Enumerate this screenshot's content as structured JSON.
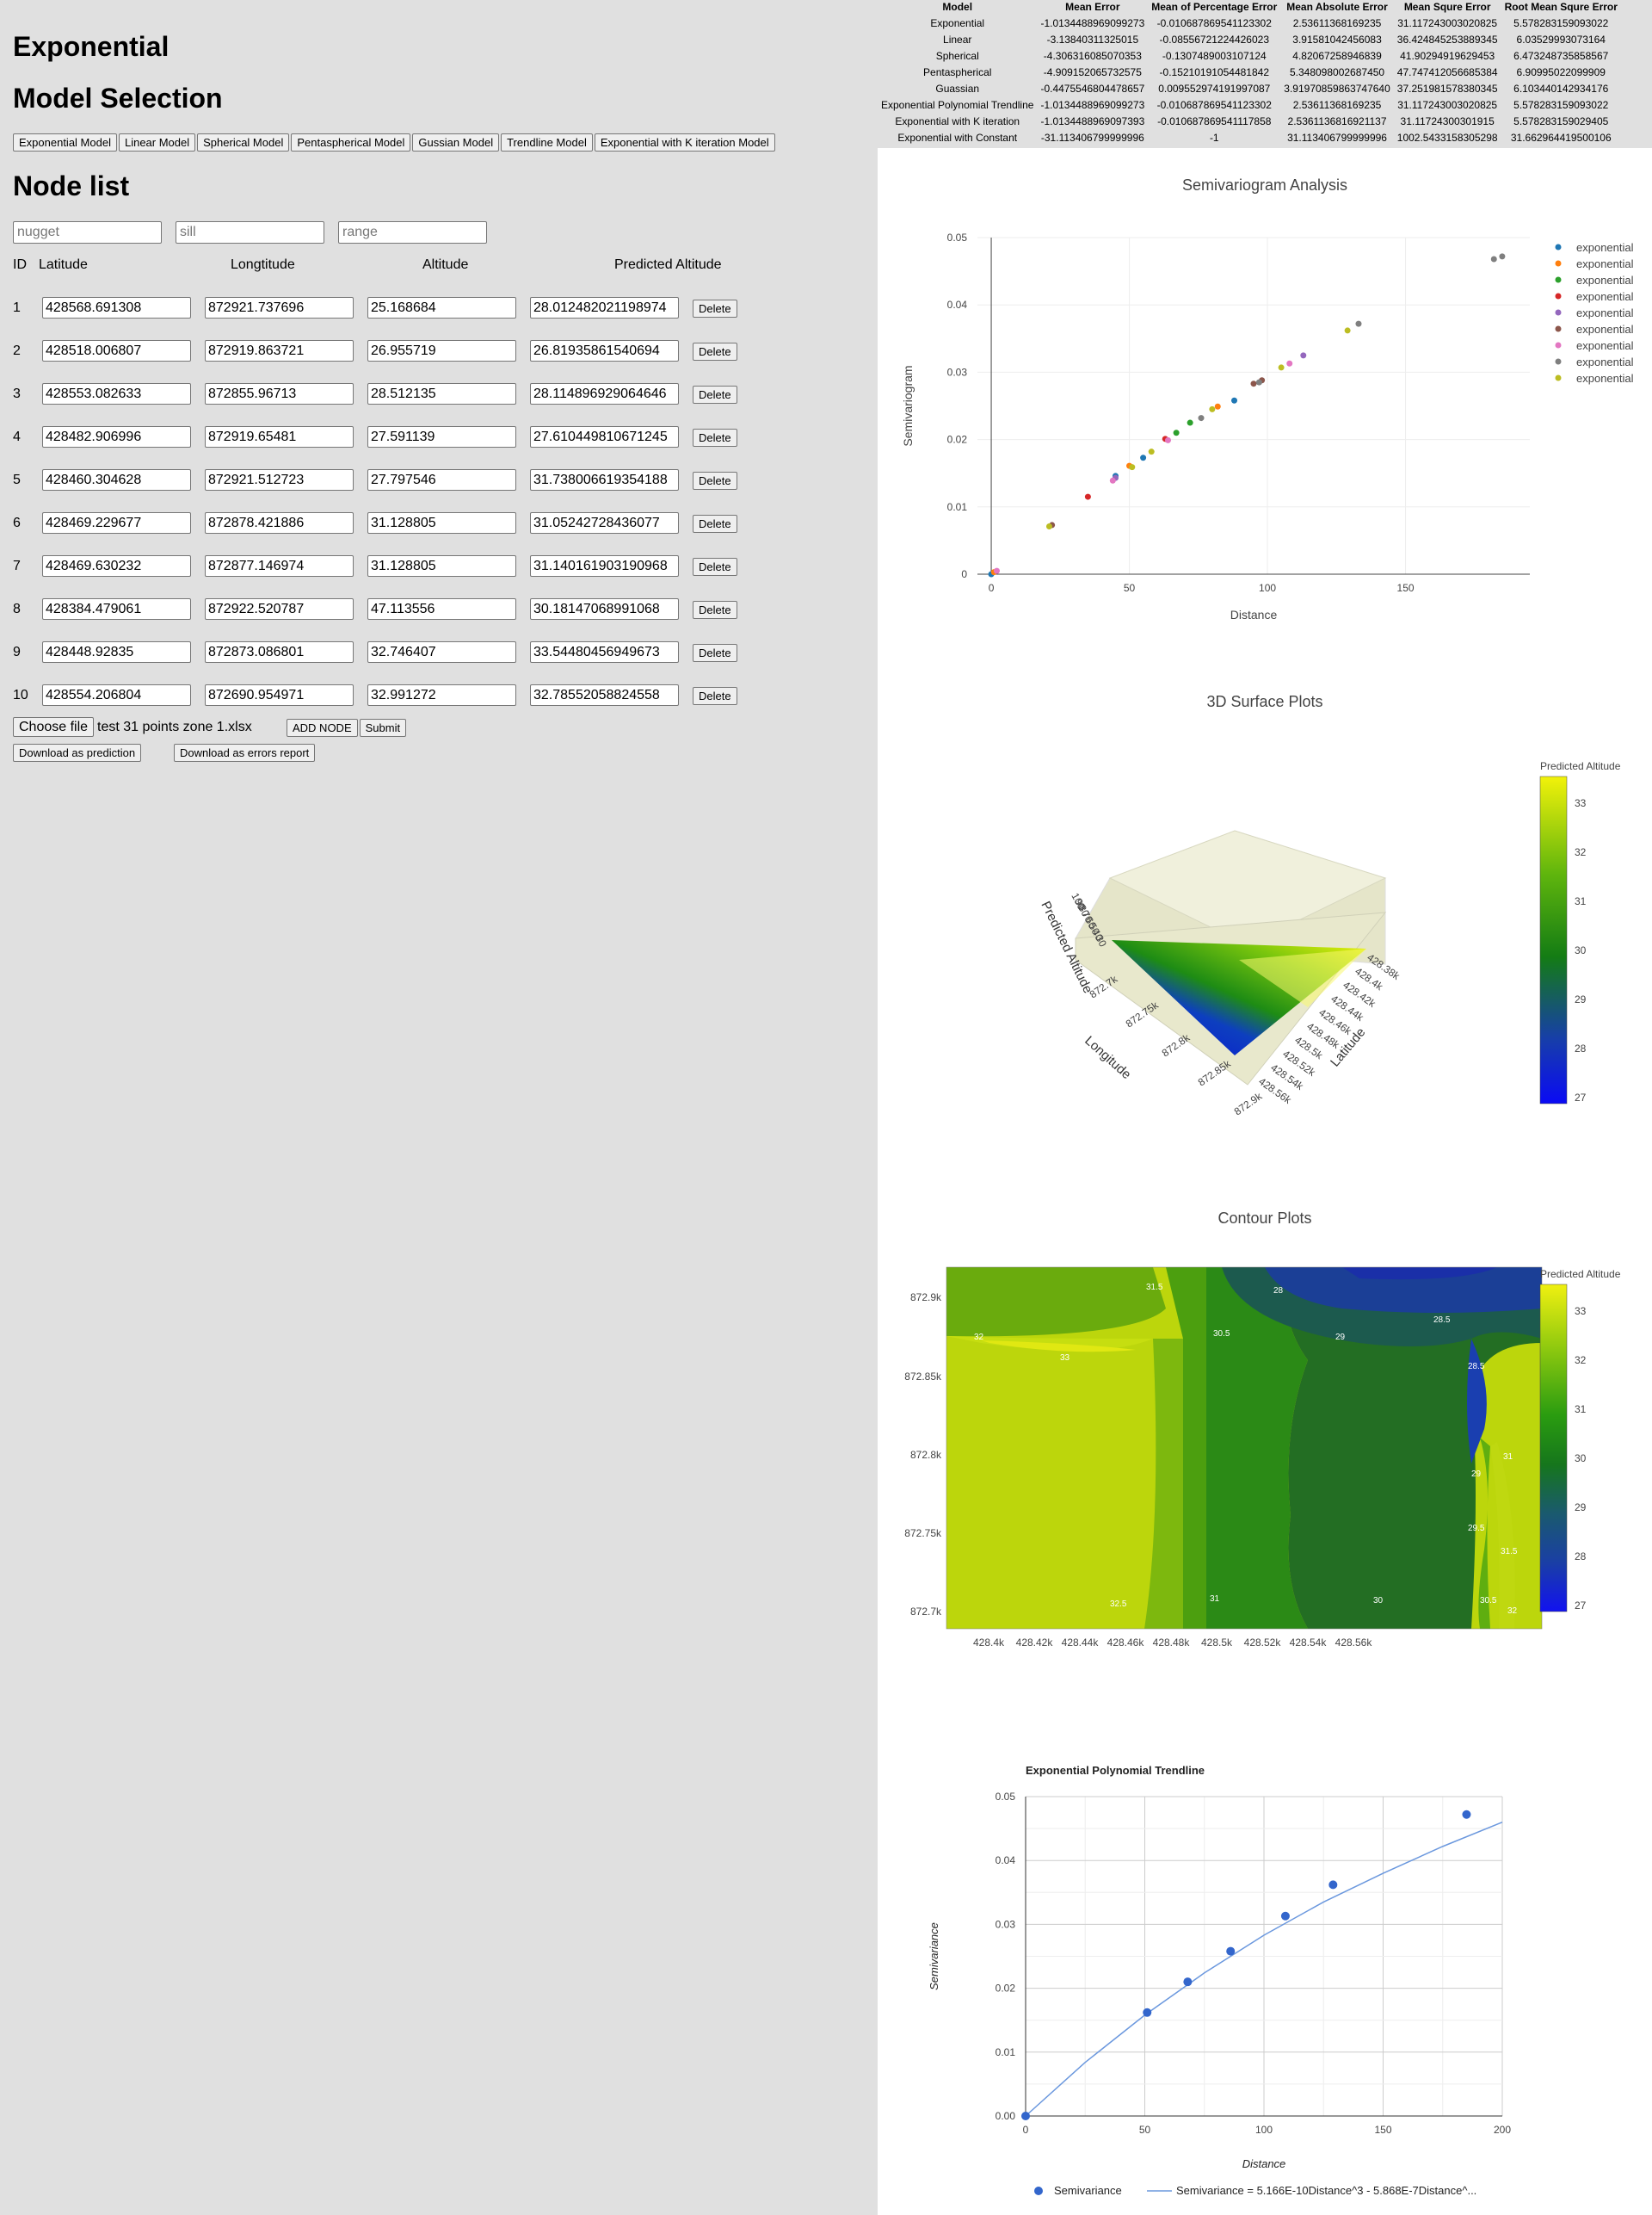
{
  "page": {
    "title": "Exponential",
    "model_selection_heading": "Model Selection",
    "node_list_heading": "Node list"
  },
  "model_buttons": [
    "Exponential Model",
    "Linear Model",
    "Spherical Model",
    "Pentaspherical Model",
    "Gussian Model",
    "Trendline Model",
    "Exponential with K iteration Model"
  ],
  "params": {
    "nugget_placeholder": "nugget",
    "sill_placeholder": "sill",
    "range_placeholder": "range"
  },
  "node_table": {
    "headers": {
      "id": "ID",
      "lat": "Latitude",
      "lon": "Longtitude",
      "alt": "Altitude",
      "pred": "Predicted Altitude"
    },
    "delete_label": "Delete",
    "rows": [
      {
        "id": "1",
        "lat": "428568.691308",
        "lon": "872921.737696",
        "alt": "25.168684",
        "pred": "28.012482021198974"
      },
      {
        "id": "2",
        "lat": "428518.006807",
        "lon": "872919.863721",
        "alt": "26.955719",
        "pred": "26.81935861540694"
      },
      {
        "id": "3",
        "lat": "428553.082633",
        "lon": "872855.96713",
        "alt": "28.512135",
        "pred": "28.114896929064646"
      },
      {
        "id": "4",
        "lat": "428482.906996",
        "lon": "872919.65481",
        "alt": "27.591139",
        "pred": "27.610449810671245"
      },
      {
        "id": "5",
        "lat": "428460.304628",
        "lon": "872921.512723",
        "alt": "27.797546",
        "pred": "31.738006619354188"
      },
      {
        "id": "6",
        "lat": "428469.229677",
        "lon": "872878.421886",
        "alt": "31.128805",
        "pred": "31.05242728436077"
      },
      {
        "id": "7",
        "lat": "428469.630232",
        "lon": "872877.146974",
        "alt": "31.128805",
        "pred": "31.140161903190968"
      },
      {
        "id": "8",
        "lat": "428384.479061",
        "lon": "872922.520787",
        "alt": "47.113556",
        "pred": "30.18147068991068"
      },
      {
        "id": "9",
        "lat": "428448.92835",
        "lon": "872873.086801",
        "alt": "32.746407",
        "pred": "33.54480456949673"
      },
      {
        "id": "10",
        "lat": "428554.206804",
        "lon": "872690.954971",
        "alt": "32.991272",
        "pred": "32.78552058824558"
      }
    ]
  },
  "file": {
    "choose_label": "Choose file",
    "file_name": "test 31 points zone 1.xlsx",
    "add_node_label": "ADD NODE",
    "submit_label": "Submit",
    "download_prediction_label": "Download as prediction",
    "download_errors_label": "Download as errors report"
  },
  "metrics": {
    "headers": [
      "Model",
      "Mean Error",
      "Mean of Percentage Error",
      "Mean Absolute Error",
      "Mean Squre Error",
      "Root Mean Squre Error"
    ],
    "rows": [
      [
        "Exponential",
        "-1.0134488969099273",
        "-0.010687869541123302",
        "2.53611368169235",
        "31.117243003020825",
        "5.578283159093022"
      ],
      [
        "Linear",
        "-3.13840311325015",
        "-0.08556721224426023",
        "3.91581042456083",
        "36.424845253889345",
        "6.03529993073164"
      ],
      [
        "Spherical",
        "-4.306316085070353",
        "-0.1307489003107124",
        "4.82067258946839",
        "41.90294919629453",
        "6.473248735858567"
      ],
      [
        "Pentaspherical",
        "-4.909152065732575",
        "-0.15210191054481842",
        "5.348098002687450",
        "47.747412056685384",
        "6.90995022099909"
      ],
      [
        "Guassian",
        "-0.4475546804478657",
        "0.009552974191997087",
        "3.91970859863747640",
        "37.251981578380345",
        "6.103440142934176"
      ],
      [
        "Exponential Polynomial Trendline",
        "-1.0134488969099273",
        "-0.010687869541123302",
        "2.53611368169235",
        "31.117243003020825",
        "5.578283159093022"
      ],
      [
        "Exponential with K iteration",
        "-1.0134488969097393",
        "-0.010687869541117858",
        "2.5361136816921137",
        "31.11724300301915",
        "5.578283159029405"
      ],
      [
        "Exponential with Constant",
        "-31.113406799999996",
        "-1",
        "31.113406799999996",
        "1002.5433158305298",
        "31.662964419500106"
      ]
    ]
  },
  "semivariogram": {
    "title": "Semivariogram Analysis",
    "xlabel": "Distance",
    "ylabel": "Semivariogram",
    "legend_label": "exponential",
    "legend_colors": [
      "#1f77b4",
      "#ff7f0e",
      "#2ca02c",
      "#d62728",
      "#9467bd",
      "#8c564b",
      "#e377c2",
      "#7f7f7f",
      "#bcbd22"
    ]
  },
  "surface": {
    "title": "3D Surface Plots",
    "colorbar_title": "Predicted Altitude",
    "colorbar_ticks": [
      "33",
      "32",
      "31",
      "30",
      "29",
      "28",
      "27"
    ],
    "z_axis_label": "Predicted Altitude",
    "lon_axis_label": "Longitude",
    "lat_axis_label": "Latitude",
    "lon_ticks": [
      "872.7k",
      "872.75k",
      "872.8k",
      "872.85k",
      "872.9k"
    ],
    "lat_ticks": [
      "428.38k",
      "428.4k",
      "428.42k",
      "428.44k",
      "428.46k",
      "428.48k",
      "428.5k",
      "428.52k",
      "428.54k",
      "428.56k"
    ],
    "z_ticks": [
      "100",
      "90",
      "80",
      "70",
      "60",
      "50",
      "40",
      "30"
    ]
  },
  "contour": {
    "title": "Contour Plots",
    "colorbar_title": "Predicted Altitude",
    "colorbar_ticks": [
      "33",
      "32",
      "31",
      "30",
      "29",
      "28",
      "27"
    ],
    "x_ticks": [
      "428.4k",
      "428.42k",
      "428.44k",
      "428.46k",
      "428.48k",
      "428.5k",
      "428.52k",
      "428.54k",
      "428.56k"
    ],
    "y_ticks": [
      "872.9k",
      "872.85k",
      "872.8k",
      "872.75k",
      "872.7k"
    ],
    "contour_labels": [
      "31.5",
      "28",
      "28.5",
      "32",
      "33",
      "30.5",
      "29",
      "28.5",
      "31",
      "29",
      "29.5",
      "31.5",
      "32.5",
      "31",
      "30",
      "30.5",
      "32"
    ]
  },
  "chart_data": [
    {
      "type": "scatter",
      "title": "Semivariogram Analysis",
      "xlabel": "Distance",
      "ylabel": "Semivariogram",
      "xlim": [
        -5,
        195
      ],
      "ylim": [
        0,
        0.05
      ],
      "x_ticks": [
        "0",
        "50",
        "100",
        "150"
      ],
      "y_ticks": [
        "0",
        "0.01",
        "0.02",
        "0.03",
        "0.04",
        "0.05"
      ],
      "legend_position": "right",
      "series": [
        {
          "name": "exponential",
          "color": "#1f77b4",
          "x": [
            0,
            45,
            55,
            88
          ],
          "y": [
            0.0,
            0.0146,
            0.0173,
            0.0258
          ]
        },
        {
          "name": "exponential",
          "color": "#ff7f0e",
          "x": [
            1,
            50,
            82
          ],
          "y": [
            0.0003,
            0.0161,
            0.0249
          ]
        },
        {
          "name": "exponential",
          "color": "#2ca02c",
          "x": [
            67,
            72
          ],
          "y": [
            0.021,
            0.0225
          ]
        },
        {
          "name": "exponential",
          "color": "#d62728",
          "x": [
            35,
            63
          ],
          "y": [
            0.0115,
            0.0201
          ]
        },
        {
          "name": "exponential",
          "color": "#9467bd",
          "x": [
            45,
            113
          ],
          "y": [
            0.0143,
            0.0325
          ]
        },
        {
          "name": "exponential",
          "color": "#8c564b",
          "x": [
            22,
            95,
            98
          ],
          "y": [
            0.0073,
            0.0283,
            0.0288
          ]
        },
        {
          "name": "exponential",
          "color": "#e377c2",
          "x": [
            2,
            44,
            64,
            108
          ],
          "y": [
            0.0005,
            0.0139,
            0.0199,
            0.0313
          ]
        },
        {
          "name": "exponential",
          "color": "#7f7f7f",
          "x": [
            76,
            97,
            133,
            182,
            185
          ],
          "y": [
            0.0232,
            0.0285,
            0.0372,
            0.0468,
            0.0472
          ]
        },
        {
          "name": "exponential",
          "color": "#bcbd22",
          "x": [
            21,
            51,
            58,
            80,
            105,
            129
          ],
          "y": [
            0.0071,
            0.0159,
            0.0182,
            0.0245,
            0.0307,
            0.0362
          ]
        }
      ]
    },
    {
      "type": "scatter",
      "title": "Exponential Polynomial Trendline",
      "xlabel": "Distance",
      "ylabel": "Semivariance",
      "xlim": [
        0,
        200
      ],
      "ylim": [
        0,
        0.05
      ],
      "x_ticks": [
        "0",
        "50",
        "100",
        "150",
        "200"
      ],
      "y_ticks": [
        "0.00",
        "0.01",
        "0.02",
        "0.03",
        "0.04",
        "0.05"
      ],
      "legend_position": "bottom",
      "series": [
        {
          "name": "Semivariance",
          "color": "#3366cc",
          "x": [
            0,
            51,
            68,
            86,
            109,
            129,
            185
          ],
          "y": [
            0.0,
            0.0162,
            0.021,
            0.0258,
            0.0313,
            0.0362,
            0.0472
          ]
        },
        {
          "name": "Semivariance = 5.166E-10Distance^3 - 5.868E-7Distance^...",
          "color": "#6b98de",
          "x": [
            0,
            25,
            50,
            75,
            100,
            125,
            150,
            175,
            200
          ],
          "y": [
            0.0,
            0.0084,
            0.0158,
            0.0224,
            0.0283,
            0.0335,
            0.038,
            0.0422,
            0.046
          ]
        }
      ]
    }
  ],
  "trendline": {
    "title": "Exponential Polynomial Trendline",
    "xlabel": "Distance",
    "ylabel": "Semivariance",
    "legend_points": "Semivariance",
    "legend_line": "Semivariance = 5.166E-10Distance^3 - 5.868E-7Distance^..."
  }
}
